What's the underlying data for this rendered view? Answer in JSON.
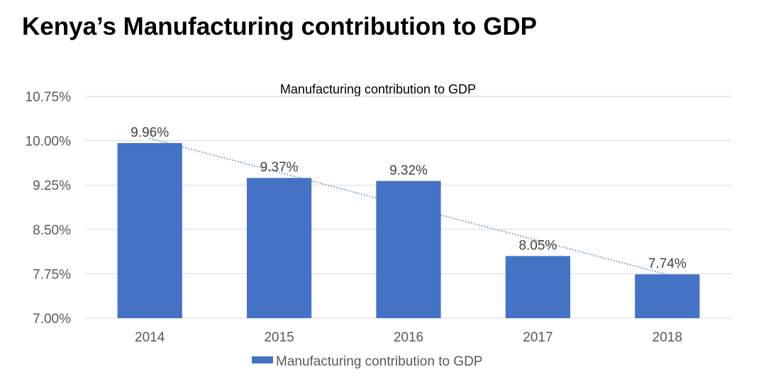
{
  "page": {
    "title": "Kenya’s Manufacturing contribution to GDP"
  },
  "chart_data": {
    "type": "bar",
    "title": "Manufacturing contribution to GDP",
    "xlabel": "",
    "ylabel": "",
    "categories": [
      "2014",
      "2015",
      "2016",
      "2017",
      "2018"
    ],
    "series": [
      {
        "name": "Manufacturing contribution to GDP",
        "values": [
          9.96,
          9.37,
          9.32,
          8.05,
          7.74
        ],
        "labels": [
          "9.96%",
          "9.37%",
          "9.32%",
          "8.05%",
          "7.74%"
        ],
        "color": "#4472C4"
      }
    ],
    "trendline": {
      "type": "linear",
      "style": "dotted",
      "color": "#4472C4"
    },
    "ylim": [
      7.0,
      10.75
    ],
    "yticks": [
      7.0,
      7.75,
      8.5,
      9.25,
      10.0,
      10.75
    ],
    "ytick_labels": [
      "7.00%",
      "7.75%",
      "8.50%",
      "9.25%",
      "10.00%",
      "10.75%"
    ],
    "grid": true,
    "legend": {
      "position": "bottom",
      "entries": [
        "Manufacturing contribution to GDP"
      ]
    },
    "gridline_color": "#D9D9D9"
  }
}
